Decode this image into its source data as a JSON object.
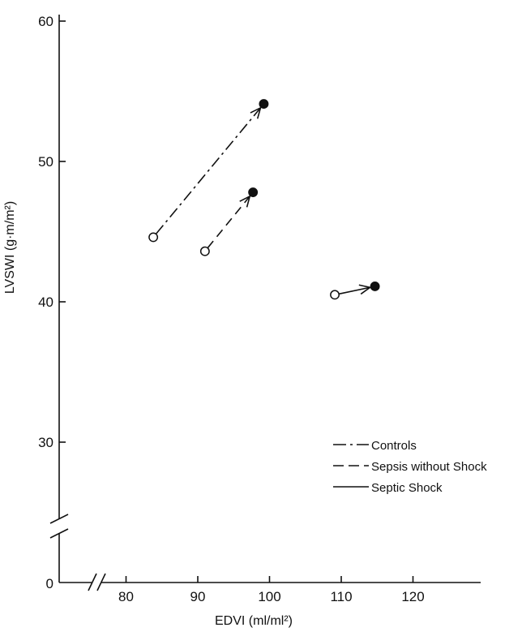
{
  "chart_data": {
    "type": "scatter",
    "xlabel": "EDVI (ml/ml²)",
    "ylabel": "LVSWI (g·m/m²)",
    "x_ticks": [
      80,
      90,
      100,
      110,
      120
    ],
    "y_ticks": [
      30,
      40,
      50,
      60
    ],
    "y_zero_label": "0",
    "x_axis_break": true,
    "y_axis_break": true,
    "xlim": [
      75,
      125
    ],
    "ylim": [
      25,
      61
    ],
    "legend_position": "lower-right",
    "series": [
      {
        "name": "Controls",
        "line_style": "dash-dot",
        "from": {
          "x": 83.8,
          "y": 44.6
        },
        "to": {
          "x": 99.2,
          "y": 54.1
        }
      },
      {
        "name": "Sepsis without Shock",
        "line_style": "dashed",
        "from": {
          "x": 91.0,
          "y": 43.6
        },
        "to": {
          "x": 97.7,
          "y": 47.8
        }
      },
      {
        "name": "Septic Shock",
        "line_style": "solid",
        "from": {
          "x": 109.1,
          "y": 40.5
        },
        "to": {
          "x": 114.7,
          "y": 41.1
        }
      }
    ],
    "marker_meaning": {
      "from": "open circle",
      "to": "filled circle"
    }
  }
}
